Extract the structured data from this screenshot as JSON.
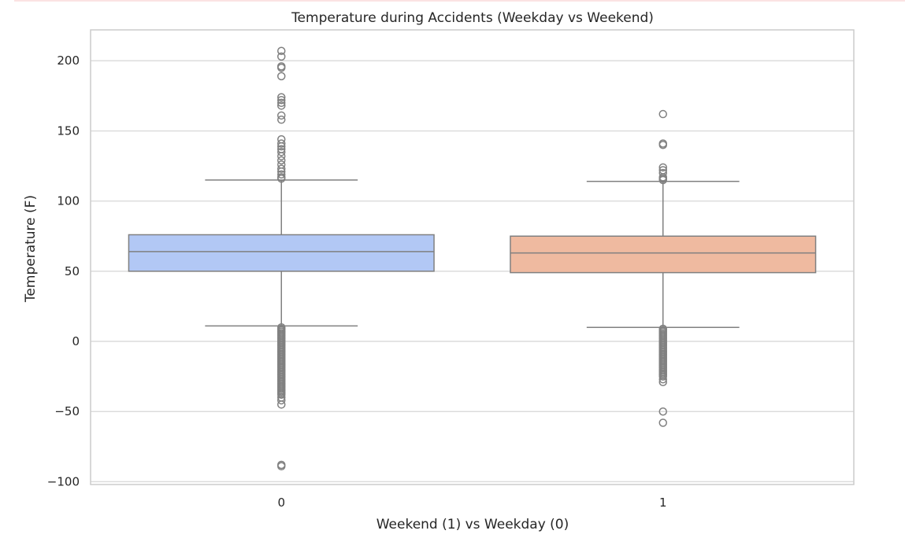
{
  "chart_data": {
    "type": "box",
    "title": "Temperature during Accidents (Weekday vs Weekend)",
    "xlabel": "Weekend (1) vs Weekday (0)",
    "ylabel": "Temperature (F)",
    "categories": [
      "0",
      "1"
    ],
    "ylim": [
      -102,
      222
    ],
    "yticks": [
      -100,
      -50,
      0,
      50,
      100,
      150,
      200
    ],
    "ytick_labels": [
      "−100",
      "−50",
      "0",
      "50",
      "100",
      "150",
      "200"
    ],
    "grid": "horizontal",
    "colors": {
      "0": "#b2c8f5",
      "1": "#efbaa0",
      "line": "#808080",
      "grid": "#dcdcdc",
      "frame": "#cccccc"
    },
    "boxes": [
      {
        "category": "0",
        "whisker_low": 11,
        "q1": 50,
        "median": 64,
        "q3": 76,
        "whisker_high": 115,
        "outliers": [
          207,
          203,
          196,
          195,
          189,
          174,
          172,
          170,
          168,
          161,
          158,
          144,
          141,
          139,
          137,
          135,
          132,
          129,
          126,
          123,
          121,
          119,
          117,
          116,
          10,
          9,
          8,
          7,
          6,
          5,
          4,
          3,
          2,
          1,
          0,
          -1,
          -2,
          -3,
          -4,
          -5,
          -6,
          -7,
          -8,
          -9,
          -10,
          -11,
          -12,
          -13,
          -14,
          -15,
          -16,
          -17,
          -18,
          -19,
          -20,
          -21,
          -22,
          -23,
          -24,
          -25,
          -26,
          -27,
          -28,
          -29,
          -30,
          -31,
          -32,
          -33,
          -34,
          -35,
          -36,
          -37,
          -38,
          -40,
          -42,
          -45,
          -88,
          -89
        ]
      },
      {
        "category": "1",
        "whisker_low": 10,
        "q1": 49,
        "median": 63,
        "q3": 75,
        "whisker_high": 114,
        "outliers": [
          162,
          141,
          140,
          124,
          122,
          120,
          117,
          116,
          115,
          9,
          8,
          7,
          6,
          5,
          4,
          3,
          2,
          1,
          0,
          -1,
          -2,
          -3,
          -4,
          -5,
          -6,
          -7,
          -8,
          -9,
          -10,
          -11,
          -12,
          -13,
          -14,
          -15,
          -16,
          -17,
          -18,
          -19,
          -20,
          -21,
          -22,
          -23,
          -24,
          -25,
          -27,
          -29,
          -50,
          -58
        ]
      }
    ]
  }
}
